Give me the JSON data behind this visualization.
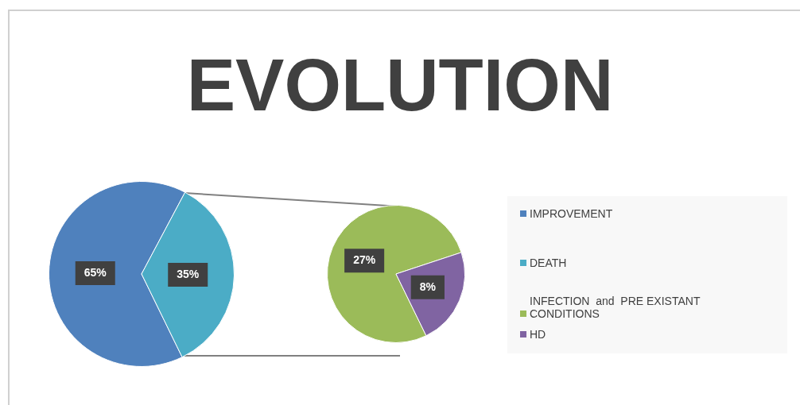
{
  "chart_data": [
    {
      "type": "pie",
      "title": "EVOLUTION",
      "categories": [
        "IMPROVEMENT",
        "DEATH"
      ],
      "values": [
        65,
        35
      ],
      "colors": [
        "#4f81bd",
        "#4bacc6"
      ],
      "value_labels": [
        "65%",
        "35%"
      ],
      "legend": "right"
    },
    {
      "type": "pie",
      "categories": [
        "INFECTION  and  PRE EXISTANT CONDITIONS",
        "HD"
      ],
      "values": [
        27,
        8
      ],
      "colors": [
        "#9bbb59",
        "#8064a2"
      ],
      "value_labels": [
        "27%",
        "8%"
      ],
      "legend": "right"
    }
  ]
}
